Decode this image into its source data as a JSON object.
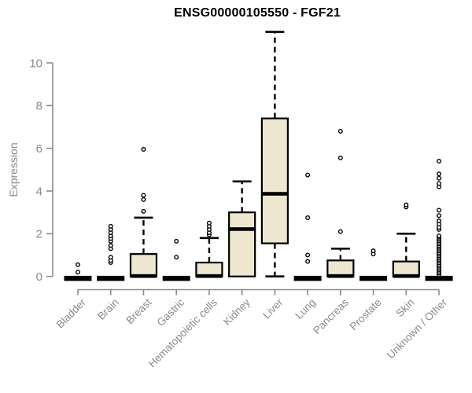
{
  "colors": {
    "box_fill": "#EDE7D0",
    "box_stroke": "#000000",
    "median": "#000000",
    "axis": "#8a8a8a",
    "tick_label": "#8a8a8a",
    "title": "#000000",
    "background": "#ffffff",
    "outlier_stroke": "#000000",
    "outlier_fill": "#ffffff"
  },
  "chart_data": {
    "type": "boxplot",
    "title": "ENSG00000105550 - FGF21",
    "ylabel": "Expression",
    "xlabel": "",
    "ylim": [
      0,
      11.5
    ],
    "yticks": [
      0,
      2,
      4,
      6,
      8,
      10
    ],
    "grid": "off",
    "legend": "none",
    "categories": [
      "Bladder",
      "Brain",
      "Breast",
      "Gastric",
      "Hematopoietic cells",
      "Kidney",
      "Liver",
      "Lung",
      "Pancreas",
      "Prostate",
      "Skin",
      "Unknown / Other"
    ],
    "boxes": [
      {
        "category": "Bladder",
        "min": 0,
        "q1": 0,
        "median": 0,
        "q3": 0,
        "max": 0,
        "outliers": [
          0.2,
          0.55
        ]
      },
      {
        "category": "Brain",
        "min": 0,
        "q1": 0,
        "median": 0,
        "q3": 0,
        "max": 0,
        "outliers": [
          0.65,
          0.75,
          0.9,
          1.3,
          1.45,
          1.65,
          1.78,
          1.9,
          2.05,
          2.2,
          2.35
        ]
      },
      {
        "category": "Breast",
        "min": 0,
        "q1": 0,
        "median": 0,
        "q3": 1.05,
        "max": 2.75,
        "outliers": [
          3.05,
          3.6,
          3.8,
          5.95
        ]
      },
      {
        "category": "Gastric",
        "min": 0,
        "q1": 0,
        "median": 0,
        "q3": 0,
        "max": 0,
        "outliers": [
          0.9,
          1.65
        ]
      },
      {
        "category": "Hematopoietic cells",
        "min": 0,
        "q1": 0,
        "median": 0,
        "q3": 0.65,
        "max": 1.8,
        "outliers": [
          1.95,
          2.05,
          2.2,
          2.35,
          2.5
        ]
      },
      {
        "category": "Kidney",
        "min": 0,
        "q1": 0,
        "median": 2.2,
        "q3": 3.0,
        "max": 4.45,
        "outliers": []
      },
      {
        "category": "Liver",
        "min": 0,
        "q1": 1.55,
        "median": 3.85,
        "q3": 7.4,
        "max": 11.45,
        "outliers": []
      },
      {
        "category": "Lung",
        "min": 0,
        "q1": 0,
        "median": 0,
        "q3": 0,
        "max": 0,
        "outliers": [
          0.7,
          1.0,
          2.75,
          4.75
        ]
      },
      {
        "category": "Pancreas",
        "min": 0,
        "q1": 0,
        "median": 0,
        "q3": 0.75,
        "max": 1.3,
        "outliers": [
          2.1,
          5.55,
          6.8
        ]
      },
      {
        "category": "Prostate",
        "min": 0,
        "q1": 0,
        "median": 0,
        "q3": 0,
        "max": 0,
        "outliers": [
          1.05,
          1.2
        ]
      },
      {
        "category": "Skin",
        "min": 0,
        "q1": 0,
        "median": 0,
        "q3": 0.7,
        "max": 2.0,
        "outliers": [
          3.25,
          3.35
        ]
      },
      {
        "category": "Unknown / Other",
        "min": 0,
        "q1": 0,
        "median": 0,
        "q3": 0,
        "max": 0,
        "outliers": [
          0.08,
          0.16,
          0.24,
          0.32,
          0.4,
          0.48,
          0.56,
          0.64,
          0.72,
          0.8,
          0.88,
          0.96,
          1.04,
          1.12,
          1.2,
          1.28,
          1.36,
          1.44,
          1.52,
          1.6,
          1.68,
          1.76,
          1.84,
          1.9,
          2.2,
          2.3,
          2.45,
          2.6,
          2.85,
          3.1,
          4.2,
          4.35,
          4.6,
          4.8,
          5.4
        ]
      }
    ]
  }
}
